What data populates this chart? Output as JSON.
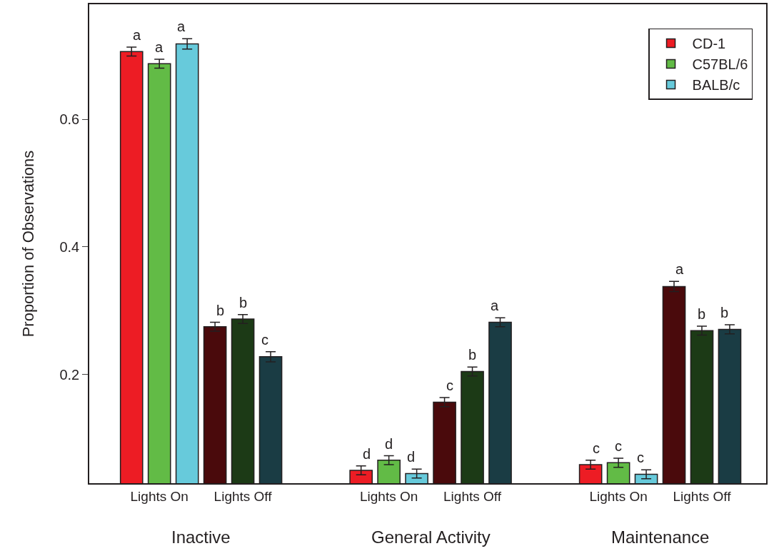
{
  "chart_data": {
    "type": "bar",
    "ylabel": "Proportion of Observations",
    "categories": [
      "Lights On",
      "Lights Off",
      "Lights On",
      "Lights Off",
      "Lights On",
      "Lights Off"
    ],
    "series": [
      {
        "name": "CD-1",
        "color": "#ed1c24",
        "colors": [
          null,
          "#4a0a0c",
          null,
          "#4a0a0c",
          null,
          "#4a0a0c"
        ],
        "values": [
          0.706,
          0.275,
          0.05,
          0.157,
          0.059,
          0.338
        ],
        "errors": [
          0.007,
          0.007,
          0.007,
          0.007,
          0.007,
          0.008
        ],
        "value_labels": [
          "a",
          "b",
          "d",
          "c",
          "c",
          "a"
        ]
      },
      {
        "name": "C57BL/6",
        "color": "#62bb46",
        "colors": [
          null,
          "#1c3a16",
          null,
          "#1c3a16",
          null,
          "#1c3a16"
        ],
        "values": [
          0.687,
          0.287,
          0.066,
          0.205,
          0.062,
          0.269
        ],
        "errors": [
          0.007,
          0.007,
          0.007,
          0.007,
          0.007,
          0.007
        ],
        "value_labels": [
          "a",
          "b",
          "d",
          "b",
          "c",
          "b"
        ]
      },
      {
        "name": "BALB/c",
        "color": "#67cadb",
        "colors": [
          null,
          "#1a3c44",
          null,
          "#1a3c44",
          null,
          "#1a3c44"
        ],
        "values": [
          0.718,
          0.228,
          0.045,
          0.282,
          0.044,
          0.271
        ],
        "errors": [
          0.008,
          0.008,
          0.007,
          0.007,
          0.007,
          0.007
        ],
        "value_labels": [
          "a",
          "c",
          "d",
          "a",
          "c",
          "b"
        ]
      }
    ],
    "annotations": [
      "Inactive",
      "General Activity",
      "Maintenance"
    ],
    "ylim": [
      0.03,
      0.78
    ],
    "yticks": [
      0.2,
      0.4,
      0.6
    ],
    "legend": "top right"
  }
}
